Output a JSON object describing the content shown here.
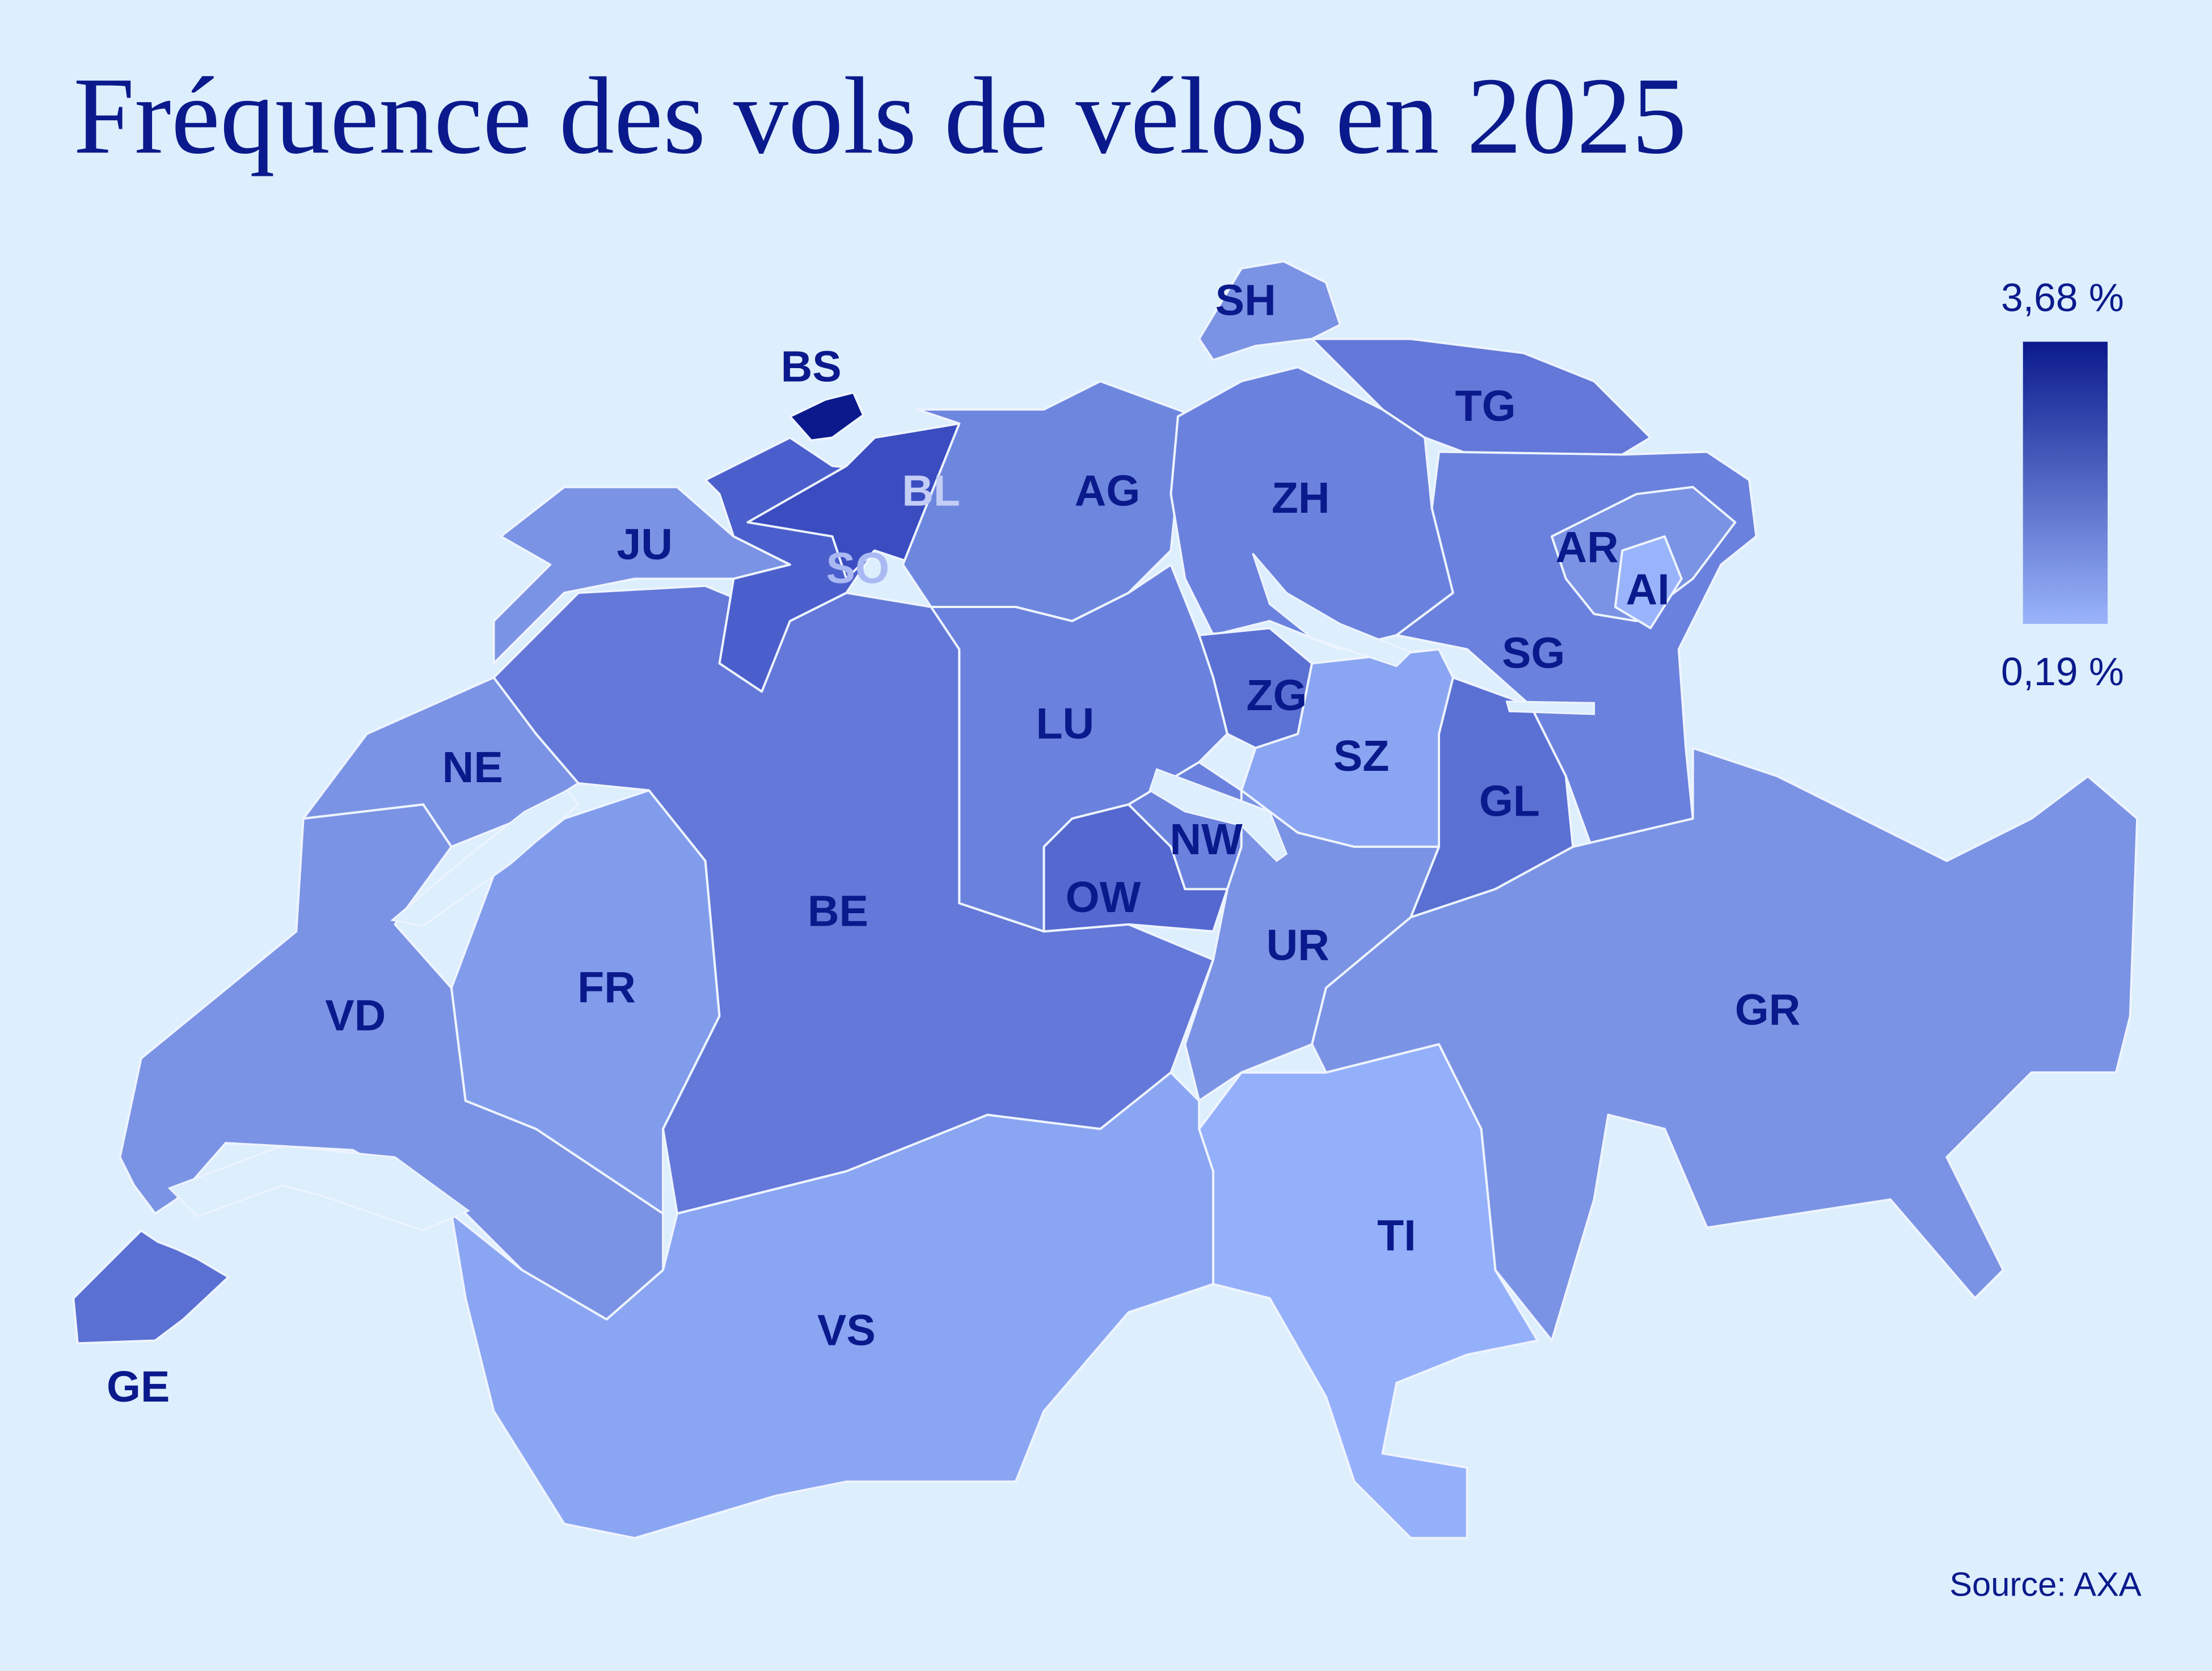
{
  "title": "Fréquence des vols de vélos en 2025",
  "source": "Source: AXA",
  "legend": {
    "max": {
      "value": 3.68,
      "label": "3,68 %"
    },
    "min": {
      "value": 0.19,
      "label": "0,19 %"
    },
    "max_color": "#0a1a8c",
    "min_color": "#9ab4fb"
  },
  "label_color": "#0a1a8c",
  "cantons": [
    {
      "code": "VD",
      "color": "#7b93e4"
    },
    {
      "code": "GE",
      "color": "#5a70d3"
    },
    {
      "code": "NE",
      "color": "#7b93e4"
    },
    {
      "code": "JU",
      "color": "#7b93e4"
    },
    {
      "code": "FR",
      "color": "#829cec"
    },
    {
      "code": "BE",
      "color": "#6378d8"
    },
    {
      "code": "VS",
      "color": "#8aa5f2"
    },
    {
      "code": "SO",
      "color": "#4b5fcc",
      "label_color": "#aab9f3"
    },
    {
      "code": "BL",
      "color": "#3a4cc0",
      "label_color": "#c3cdf5"
    },
    {
      "code": "BS",
      "color": "#0a1a8c"
    },
    {
      "code": "AG",
      "color": "#6e87de"
    },
    {
      "code": "ZH",
      "color": "#6a82dd"
    },
    {
      "code": "SH",
      "color": "#7b93e4"
    },
    {
      "code": "TG",
      "color": "#6378d8"
    },
    {
      "code": "SG",
      "color": "#6a82dd"
    },
    {
      "code": "AR",
      "color": "#7b93e4"
    },
    {
      "code": "AI",
      "color": "#9ab4fb"
    },
    {
      "code": "GL",
      "color": "#5a70d3"
    },
    {
      "code": "LU",
      "color": "#6a82dd"
    },
    {
      "code": "ZG",
      "color": "#5a70d3"
    },
    {
      "code": "SZ",
      "color": "#8aa5f2"
    },
    {
      "code": "NW",
      "color": "#6a82dd"
    },
    {
      "code": "OW",
      "color": "#5468d0"
    },
    {
      "code": "UR",
      "color": "#7b93e4"
    },
    {
      "code": "GR",
      "color": "#7b93e4"
    },
    {
      "code": "TI",
      "color": "#95b0fa"
    }
  ]
}
